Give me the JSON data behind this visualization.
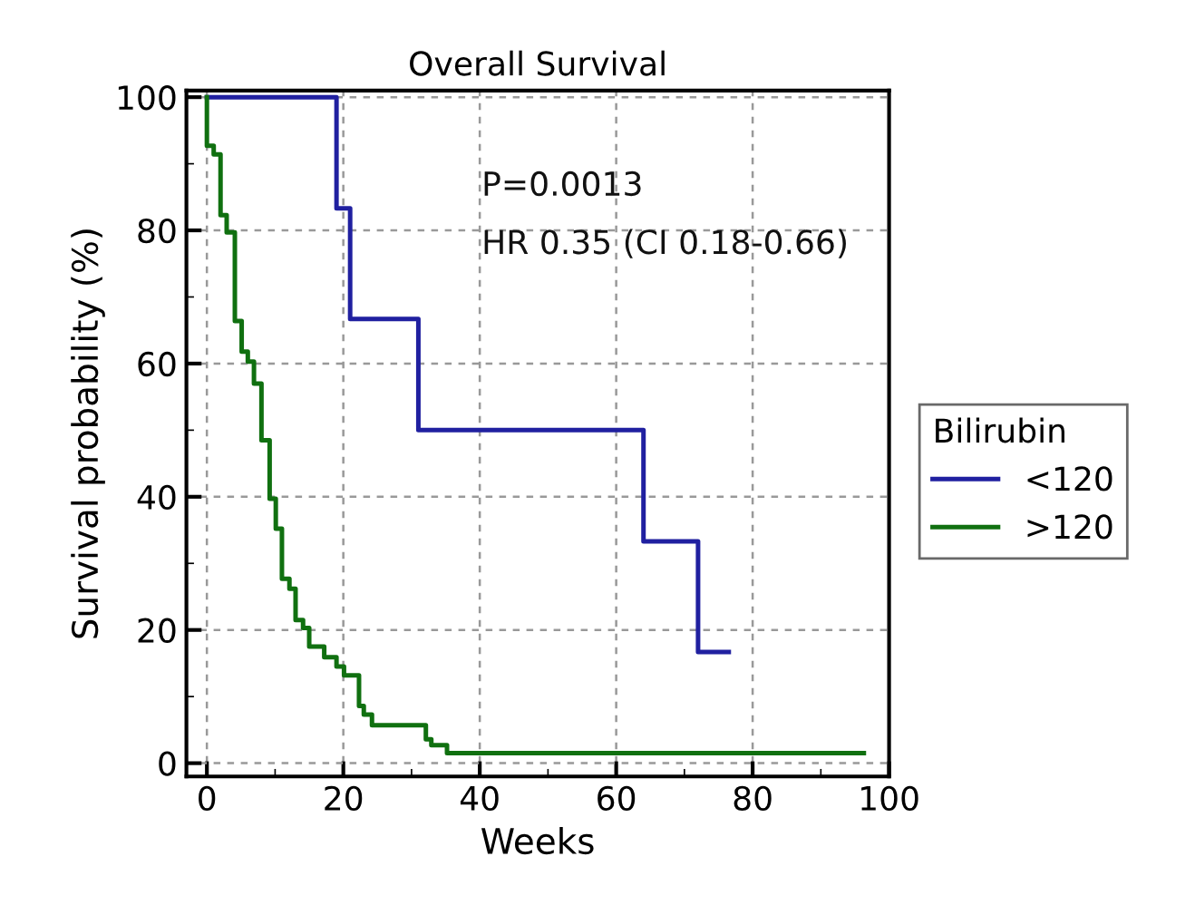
{
  "chart_data": {
    "type": "step",
    "title": "Overall Survival",
    "xlabel": "Weeks",
    "ylabel": "Survival probability (%)",
    "legend_title": "Bilirubin",
    "annotations": [
      "P=0.0013",
      "HR 0.35 (CI 0.18-0.66)"
    ],
    "series": [
      {
        "name": "<120",
        "color": "#2020a0",
        "x": [
          0,
          19,
          21,
          31,
          64,
          72,
          76.5
        ],
        "values": [
          100,
          83.3,
          66.7,
          50,
          33.3,
          16.7,
          16.7
        ]
      },
      {
        "name": ">120",
        "color": "#107010",
        "x": [
          0,
          0,
          1.0,
          2.0,
          2.9,
          4.1,
          5.1,
          6.0,
          6.9,
          8.0,
          9.2,
          10.1,
          11.0,
          12.1,
          13.0,
          14.1,
          15.0,
          17.2,
          19.0,
          20.1,
          22.3,
          23.0,
          24.2,
          32.1,
          32.9,
          35.2,
          96.3
        ],
        "values": [
          100,
          92.7,
          91.4,
          82.3,
          79.7,
          66.4,
          61.8,
          60.3,
          57,
          48.5,
          39.7,
          35.2,
          27.7,
          26.2,
          21.5,
          20.3,
          17.5,
          15.9,
          14.5,
          13.2,
          8.6,
          7.3,
          5.7,
          3.6,
          2.7,
          1.5,
          1.5
        ]
      }
    ],
    "xlim": [
      -3,
      100
    ],
    "ylim": [
      -2,
      101
    ],
    "xticks": [
      0,
      20,
      40,
      60,
      80,
      100
    ],
    "yticks": [
      0,
      20,
      40,
      60,
      80,
      100
    ],
    "grid": true,
    "legend": "right",
    "line_style": "solid",
    "marker": "none"
  }
}
